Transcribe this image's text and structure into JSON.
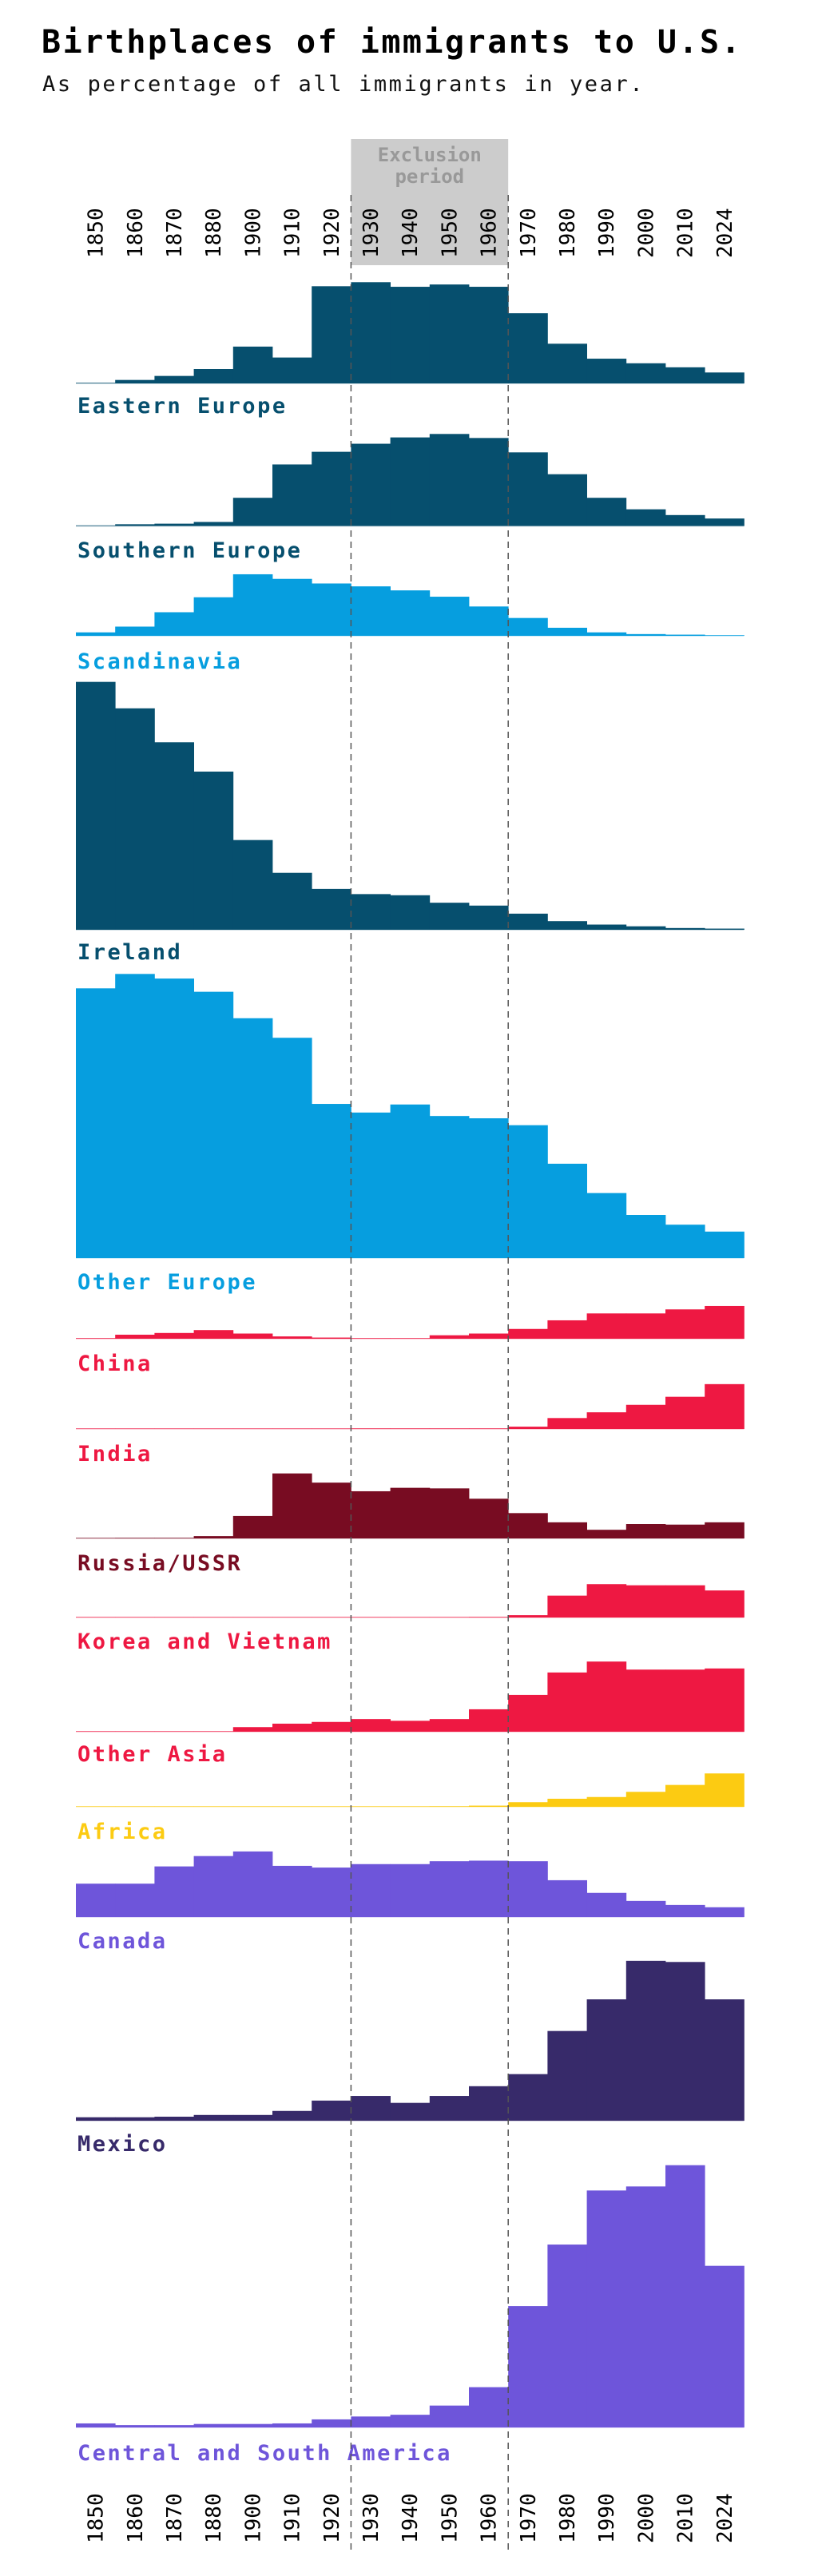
{
  "header": {
    "title": "Birthplaces of immigrants to U.S.",
    "subtitle": "As percentage of all immigrants in year."
  },
  "chart_data": {
    "type": "area",
    "style": "step small multiples",
    "unit": "percent of all immigrants in year",
    "categories": [
      "1850",
      "1860",
      "1870",
      "1880",
      "1900",
      "1910",
      "1920",
      "1930",
      "1940",
      "1950",
      "1960",
      "1970",
      "1980",
      "1990",
      "2000",
      "2010",
      "2024"
    ],
    "annotation": {
      "label": "Exclusion period",
      "line1": "Exclusion",
      "line2": "period",
      "from": "1930",
      "to": "1960"
    },
    "series": [
      {
        "name": "Eastern Europe",
        "color": "#064f6e",
        "label_color": "#064f6e",
        "values": [
          0.1,
          0.6,
          1.3,
          2.5,
          6.4,
          4.5,
          16.9,
          17.6,
          16.8,
          17.2,
          16.8,
          12.2,
          6.9,
          4.3,
          3.5,
          2.8,
          1.9
        ]
      },
      {
        "name": "Southern Europe",
        "color": "#064f6e",
        "label_color": "#064f6e",
        "values": [
          0.1,
          0.3,
          0.4,
          0.7,
          4.9,
          10.7,
          12.9,
          14.3,
          15.4,
          16.0,
          15.3,
          12.8,
          9.0,
          4.9,
          2.9,
          1.9,
          1.3
        ]
      },
      {
        "name": "Scandinavia",
        "color": "#069edf",
        "label_color": "#069edf",
        "values": [
          0.6,
          1.6,
          4.1,
          6.7,
          10.7,
          9.9,
          9.1,
          8.6,
          7.9,
          6.8,
          5.1,
          3.1,
          1.4,
          0.6,
          0.3,
          0.2,
          0.1
        ]
      },
      {
        "name": "Ireland",
        "color": "#064f6e",
        "label_color": "#064f6e",
        "values": [
          43.1,
          38.5,
          32.6,
          27.5,
          15.6,
          9.9,
          7.1,
          6.2,
          6.0,
          4.7,
          4.2,
          2.8,
          1.5,
          0.9,
          0.6,
          0.3,
          0.2
        ]
      },
      {
        "name": "Other Europe",
        "color": "#069edf",
        "label_color": "#069edf",
        "values": [
          46.9,
          49.4,
          48.6,
          46.3,
          41.7,
          38.3,
          26.8,
          25.3,
          26.7,
          24.7,
          24.3,
          23.1,
          16.4,
          11.3,
          7.5,
          5.8,
          4.6
        ]
      },
      {
        "name": "China",
        "color": "#ee1842",
        "label_color": "#ee1842",
        "values": [
          0.1,
          0.7,
          1.0,
          1.5,
          0.9,
          0.4,
          0.2,
          0.1,
          0.1,
          0.6,
          0.9,
          1.7,
          3.2,
          4.4,
          4.4,
          5.1,
          5.7
        ]
      },
      {
        "name": "India",
        "color": "#ee1842",
        "label_color": "#ee1842",
        "values": [
          0.04,
          0.04,
          0.04,
          0.04,
          0.04,
          0.04,
          0.04,
          0.1,
          0.1,
          0.1,
          0.1,
          0.4,
          1.9,
          2.9,
          4.2,
          5.6,
          7.8
        ]
      },
      {
        "name": "Russia/USSR",
        "color": "#780c22",
        "label_color": "#780c22",
        "values": [
          0.04,
          0.1,
          0.1,
          0.4,
          3.9,
          11.3,
          9.7,
          8.2,
          8.8,
          8.7,
          6.9,
          4.4,
          2.8,
          1.5,
          2.5,
          2.4,
          2.8
        ]
      },
      {
        "name": "Korea and Vietnam",
        "color": "#ee1842",
        "label_color": "#ee1842",
        "values": [
          0.04,
          0.04,
          0.04,
          0.04,
          0.04,
          0.04,
          0.04,
          0.04,
          0.04,
          0.04,
          0.1,
          0.4,
          3.8,
          5.8,
          5.6,
          5.6,
          4.7
        ]
      },
      {
        "name": "Other Asia",
        "color": "#ee1842",
        "label_color": "#ee1842",
        "values": [
          0.04,
          0.04,
          0.04,
          0.04,
          0.8,
          1.4,
          1.7,
          2.2,
          1.9,
          2.2,
          3.9,
          6.4,
          10.3,
          12.2,
          10.8,
          10.8,
          11.0
        ]
      },
      {
        "name": "Africa",
        "color": "#fccb12",
        "label_color": "#fccb12",
        "values": [
          0.04,
          0.04,
          0.04,
          0.04,
          0.04,
          0.04,
          0.04,
          0.04,
          0.04,
          0.1,
          0.2,
          0.8,
          1.4,
          1.7,
          2.6,
          3.8,
          5.8
        ]
      },
      {
        "name": "Canada",
        "color": "#6e55da",
        "label_color": "#6e55da",
        "values": [
          5.8,
          5.8,
          8.8,
          10.6,
          11.4,
          8.9,
          8.6,
          9.2,
          9.2,
          9.7,
          9.8,
          9.7,
          6.4,
          4.2,
          2.8,
          2.1,
          1.7
        ]
      },
      {
        "name": "Mexico",
        "color": "#372a6a",
        "label_color": "#372a6a",
        "values": [
          0.6,
          0.6,
          0.7,
          1.0,
          1.0,
          1.7,
          3.5,
          4.3,
          3.1,
          4.3,
          6.0,
          8.1,
          15.6,
          21.1,
          27.8,
          27.6,
          21.1
        ]
      },
      {
        "name": "Central and South America",
        "color": "#6e55da",
        "label_color": "#6e55da",
        "values": [
          0.7,
          0.4,
          0.4,
          0.6,
          0.6,
          0.7,
          1.4,
          1.9,
          2.2,
          3.8,
          7.0,
          21.1,
          31.8,
          41.2,
          41.9,
          45.6,
          28.1
        ]
      }
    ],
    "grid": false,
    "legend": "none (series labels below each panel)"
  }
}
